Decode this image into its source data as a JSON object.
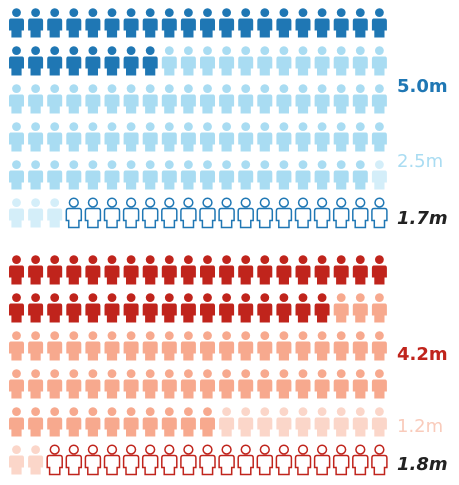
{
  "chart_data": {
    "type": "pictogram",
    "groups": [
      {
        "segments": [
          {
            "label": "5.0m",
            "value": 5.0,
            "color": "#1f77b4"
          },
          {
            "label": "2.5m",
            "value": 2.5,
            "color": "#a9dcf2"
          },
          {
            "label": "1.7m",
            "value": 1.7,
            "color": "#1f77b4"
          }
        ]
      },
      {
        "segments": [
          {
            "label": "4.2m",
            "value": 4.2,
            "color": "#c0241c"
          },
          {
            "label": "1.2m",
            "value": 1.2,
            "color": "#f7a98e"
          },
          {
            "label": "1.8m",
            "value": 1.8,
            "color": "#c0241c"
          }
        ]
      }
    ]
  }
}
